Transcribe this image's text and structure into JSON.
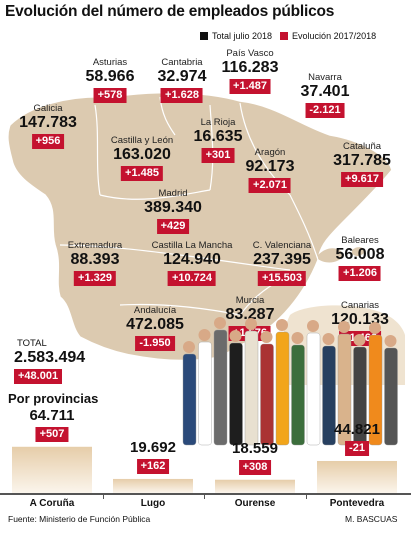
{
  "title": "Evolución del número de empleados públicos",
  "legend": {
    "total": "Total julio 2018",
    "evolution": "Evolución 2017/2018",
    "total_color": "#111111",
    "evolution_color": "#c4122f"
  },
  "colors": {
    "map": "#dccab0",
    "map_stroke": "#ffffff",
    "bar_top": "#e9d3b3",
    "bar_bottom": "#faf3e8",
    "delta_bg": "#c4122f"
  },
  "regions": [
    {
      "name": "Asturias",
      "total": "58.966",
      "delta": "+578"
    },
    {
      "name": "Cantabria",
      "total": "32.974",
      "delta": "+1.628"
    },
    {
      "name": "País Vasco",
      "total": "116.283",
      "delta": "+1.487"
    },
    {
      "name": "Navarra",
      "total": "37.401",
      "delta": "-2.121"
    },
    {
      "name": "Galicia",
      "total": "147.783",
      "delta": "+956"
    },
    {
      "name": "La Rioja",
      "total": "16.635",
      "delta": "+301"
    },
    {
      "name": "Castilla y León",
      "total": "163.020",
      "delta": "+1.485"
    },
    {
      "name": "Aragón",
      "total": "92.173",
      "delta": "+2.071"
    },
    {
      "name": "Cataluña",
      "total": "317.785",
      "delta": "+9.617"
    },
    {
      "name": "Madrid",
      "total": "389.340",
      "delta": "+429"
    },
    {
      "name": "Extremadura",
      "total": "88.393",
      "delta": "+1.329"
    },
    {
      "name": "Castilla La Mancha",
      "total": "124.940",
      "delta": "+10.724"
    },
    {
      "name": "C. Valenciana",
      "total": "237.395",
      "delta": "+15.503"
    },
    {
      "name": "Baleares",
      "total": "56.008",
      "delta": "+1.206"
    },
    {
      "name": "Andalucía",
      "total": "472.085",
      "delta": "-1.950"
    },
    {
      "name": "Murcia",
      "total": "83.287",
      "delta": "+1.576"
    },
    {
      "name": "Canarias",
      "total": "120.133",
      "delta": "+1.466"
    }
  ],
  "total": {
    "label": "TOTAL",
    "value": "2.583.494",
    "delta": "+48.001"
  },
  "provinces_title": "Por provincias",
  "chart_data": {
    "type": "bar",
    "title": "",
    "categories": [
      "A Coruña",
      "Lugo",
      "Ourense",
      "Pontevedra"
    ],
    "values": [
      64711,
      19692,
      18559,
      44821
    ],
    "value_labels": [
      "64.711",
      "19.692",
      "18.559",
      "44.821"
    ],
    "delta_labels": [
      "+507",
      "+162",
      "+308",
      "-21"
    ],
    "ylim": [
      0,
      70000
    ],
    "grid": false
  },
  "source": "Fuente: Ministerio de Función Pública",
  "author": "M. BASCUAS"
}
